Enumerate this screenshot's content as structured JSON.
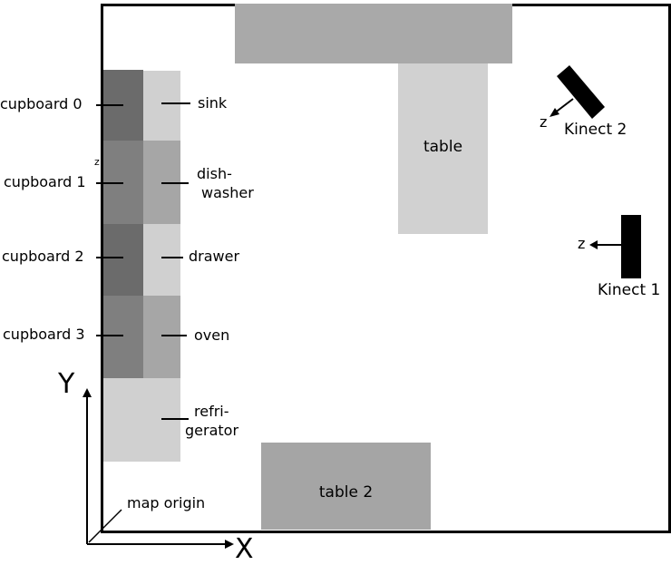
{
  "colors": {
    "dark": "#6b6b6b",
    "medium_dark": "#7f7f7f",
    "medium": "#a6a6a6",
    "light": "#d0d0d0",
    "table_top": "#a9a9a9",
    "table": "#d1d1d1",
    "table2": "#a5a5a5",
    "kinect": "#000000"
  },
  "cupboards": [
    {
      "label": "cupboard 0"
    },
    {
      "label": "cupboard 1"
    },
    {
      "label": "cupboard 2"
    },
    {
      "label": "cupboard 3"
    }
  ],
  "appliances": [
    {
      "label": "sink"
    },
    {
      "label_line1": "dish-",
      "label_line2": "washer"
    },
    {
      "label": "drawer"
    },
    {
      "label": "oven"
    },
    {
      "label_line1": "refri-",
      "label_line2": "gerator"
    }
  ],
  "tables": {
    "table": "table",
    "table2": "table 2"
  },
  "sensors": {
    "kinect1": {
      "label": "Kinect 1",
      "axis": "z"
    },
    "kinect2": {
      "label": "Kinect 2",
      "axis": "z"
    }
  },
  "axes": {
    "x_label": "X",
    "y_label": "Y",
    "origin_label": "map origin"
  },
  "small_mark": "z"
}
